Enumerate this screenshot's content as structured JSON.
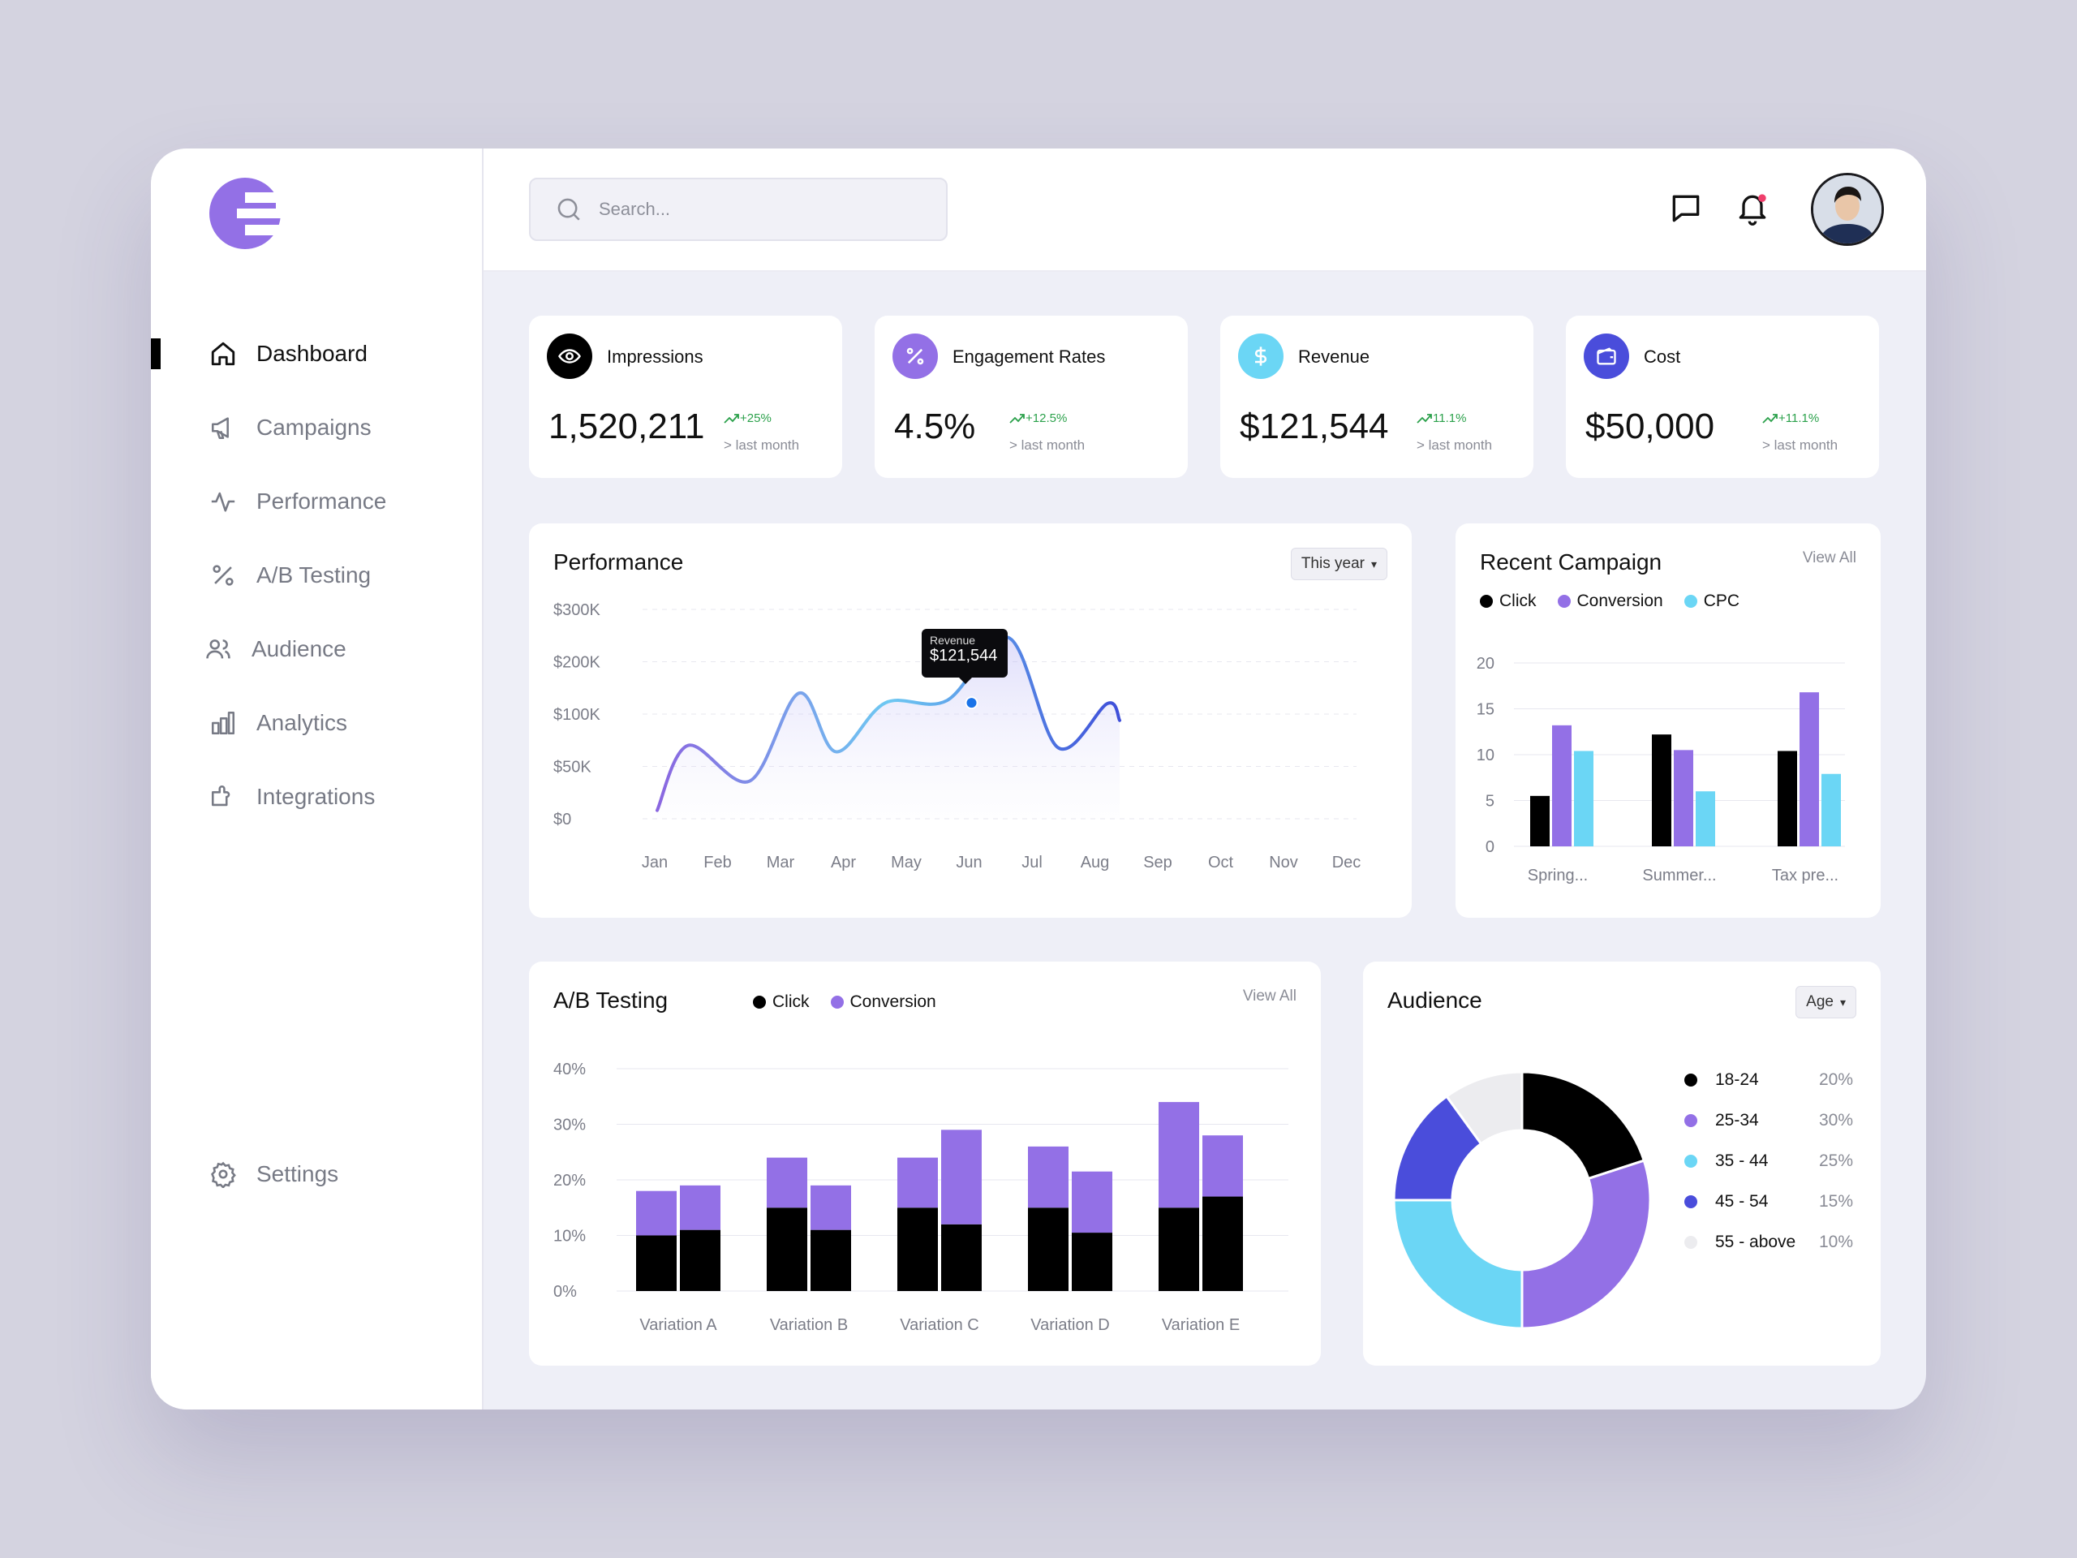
{
  "colors": {
    "black": "#000000",
    "purple": "#9370e6",
    "cyan": "#6bd6f5",
    "indigo": "#4a4ddb",
    "light": "#ececef"
  },
  "search": {
    "placeholder": "Search..."
  },
  "nav": {
    "items": [
      {
        "label": "Dashboard",
        "icon": "home-icon",
        "active": true
      },
      {
        "label": "Campaigns",
        "icon": "megaphone-icon"
      },
      {
        "label": "Performance",
        "icon": "activity-icon"
      },
      {
        "label": "A/B Testing",
        "icon": "percent-icon"
      },
      {
        "label": "Audience",
        "icon": "users-icon"
      },
      {
        "label": "Analytics",
        "icon": "bar-chart-icon"
      },
      {
        "label": "Integrations",
        "icon": "plug-icon"
      }
    ],
    "settings": "Settings"
  },
  "stats": [
    {
      "label": "Impressions",
      "value": "1,520,211",
      "change": "+25%",
      "sub": "> last month",
      "icon": "eye-icon",
      "icon_bg": "#000000"
    },
    {
      "label": "Engagement Rates",
      "value": "4.5%",
      "change": "+12.5%",
      "sub": "> last month",
      "icon": "percent-icon",
      "icon_bg": "#9370e6"
    },
    {
      "label": "Revenue",
      "value": "$121,544",
      "change": "11.1%",
      "sub": "> last month",
      "icon": "dollar-icon",
      "icon_bg": "#6bd6f5"
    },
    {
      "label": "Cost",
      "value": "$50,000",
      "change": "+11.1%",
      "sub": "> last month",
      "icon": "wallet-icon",
      "icon_bg": "#4a4ddb"
    }
  ],
  "performance": {
    "title": "Performance",
    "filter": "This year",
    "tooltip": {
      "label": "Revenue",
      "value": "$121,544"
    }
  },
  "recent_campaign": {
    "title": "Recent Campaign",
    "view_all": "View All"
  },
  "ab_testing": {
    "title": "A/B Testing",
    "view_all": "View All"
  },
  "audience": {
    "title": "Audience",
    "filter": "Age"
  },
  "chart_data": [
    {
      "type": "area",
      "name": "performance",
      "categories": [
        "Jan",
        "Feb",
        "Mar",
        "Apr",
        "May",
        "Jun",
        "Jul",
        "Aug",
        "Sep",
        "Oct",
        "Nov",
        "Dec"
      ],
      "ytick_labels": [
        "$0",
        "$50K",
        "$100K",
        "$200K",
        "$300K"
      ],
      "series": [
        {
          "points": [
            [
              0.0,
              8
            ],
            [
              0.5,
              70
            ],
            [
              1.5,
              36
            ],
            [
              2.3,
              140
            ],
            [
              2.9,
              64
            ],
            [
              3.7,
              121.5
            ],
            [
              4.7,
              126
            ],
            [
              5.7,
              246
            ],
            [
              6.5,
              68
            ],
            [
              7.3,
              120
            ],
            [
              7.5,
              94
            ]
          ]
        }
      ],
      "highlight": {
        "category": "Jun",
        "value": 121.5
      },
      "ylim": [
        0,
        300
      ],
      "grid": true
    },
    {
      "type": "bar",
      "name": "recent_campaign",
      "categories": [
        "Spring...",
        "Summer...",
        "Tax pre..."
      ],
      "series": [
        {
          "name": "Click",
          "color": "#000000",
          "values": [
            5.5,
            12.2,
            10.4
          ]
        },
        {
          "name": "Conversion",
          "color": "#9370e6",
          "values": [
            13.2,
            10.5,
            16.8
          ]
        },
        {
          "name": "CPC",
          "color": "#6bd6f5",
          "values": [
            10.4,
            6,
            7.9
          ]
        }
      ],
      "yticks": [
        0,
        5,
        10,
        15,
        20
      ],
      "ylim": [
        0,
        20
      ]
    },
    {
      "type": "bar",
      "name": "ab_testing",
      "stacked": true,
      "categories": [
        "Variation A",
        "Variation B",
        "Variation C",
        "Variation D",
        "Variation E"
      ],
      "series": [
        {
          "name": "Click",
          "color": "#000000",
          "values": [
            [
              10,
              11
            ],
            [
              15,
              11
            ],
            [
              15,
              12
            ],
            [
              15,
              10.5
            ],
            [
              15,
              17
            ]
          ]
        },
        {
          "name": "Conversion",
          "color": "#9370e6",
          "values": [
            [
              8,
              8
            ],
            [
              9,
              8
            ],
            [
              9,
              17
            ],
            [
              11,
              11
            ],
            [
              19,
              11
            ]
          ]
        }
      ],
      "ytick_labels": [
        "0%",
        "10%",
        "20%",
        "30%",
        "40%"
      ],
      "ylim": [
        0,
        40
      ]
    },
    {
      "type": "pie",
      "name": "audience",
      "donut": true,
      "slices": [
        {
          "label": "18-24",
          "value": 20,
          "pct": "20%",
          "color": "#000000"
        },
        {
          "label": "25-34",
          "value": 30,
          "pct": "30%",
          "color": "#9370e6"
        },
        {
          "label": "35 - 44",
          "value": 25,
          "pct": "25%",
          "color": "#6bd6f5"
        },
        {
          "label": "45 - 54",
          "value": 15,
          "pct": "15%",
          "color": "#4a4ddb"
        },
        {
          "label": "55 - above",
          "value": 10,
          "pct": "10%",
          "color": "#ececef"
        }
      ]
    }
  ]
}
